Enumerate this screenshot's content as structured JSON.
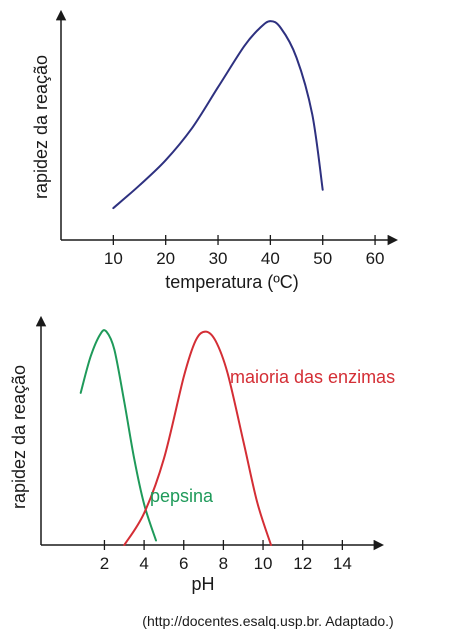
{
  "chart_data": [
    {
      "type": "line",
      "xlabel": "temperatura (ºC)",
      "ylabel": "rapidez da reação",
      "xticks": [
        "10",
        "20",
        "30",
        "40",
        "50",
        "60"
      ],
      "xlim": [
        0,
        64
      ],
      "ylim": [
        0,
        1
      ],
      "y_ticks_shown": false,
      "grid": false,
      "series": [
        {
          "color": "#2e3180",
          "x": [
            10,
            15,
            20,
            25,
            30,
            35,
            38,
            40,
            42,
            45,
            48,
            50
          ],
          "y": [
            0.14,
            0.24,
            0.35,
            0.49,
            0.67,
            0.85,
            0.93,
            0.96,
            0.93,
            0.8,
            0.55,
            0.22
          ]
        }
      ]
    },
    {
      "type": "line",
      "xlabel": "pH",
      "ylabel": "rapidez da reação",
      "xticks": [
        "2",
        "4",
        "6",
        "8",
        "10",
        "12",
        "14"
      ],
      "xlim": [
        -1.2,
        16
      ],
      "ylim": [
        0,
        1
      ],
      "y_ticks_shown": false,
      "grid": false,
      "series": [
        {
          "name": "pepsina",
          "color": "#1f9a5a",
          "x": [
            0.8,
            1.3,
            1.8,
            2.1,
            2.5,
            3.0,
            3.5,
            4.0,
            4.6
          ],
          "y": [
            0.67,
            0.83,
            0.93,
            0.94,
            0.86,
            0.63,
            0.38,
            0.18,
            0.02
          ]
        },
        {
          "name": "maioria das enzimas",
          "color": "#d42e35",
          "x": [
            3.0,
            4.0,
            5.0,
            6.0,
            6.6,
            7.1,
            7.6,
            8.2,
            9.0,
            9.7,
            10.4
          ],
          "y": [
            0.0,
            0.14,
            0.38,
            0.74,
            0.9,
            0.94,
            0.9,
            0.76,
            0.46,
            0.19,
            0.0
          ]
        }
      ]
    }
  ],
  "source_note": "(http://docentes.esalq.usp.br. Adaptado.)"
}
